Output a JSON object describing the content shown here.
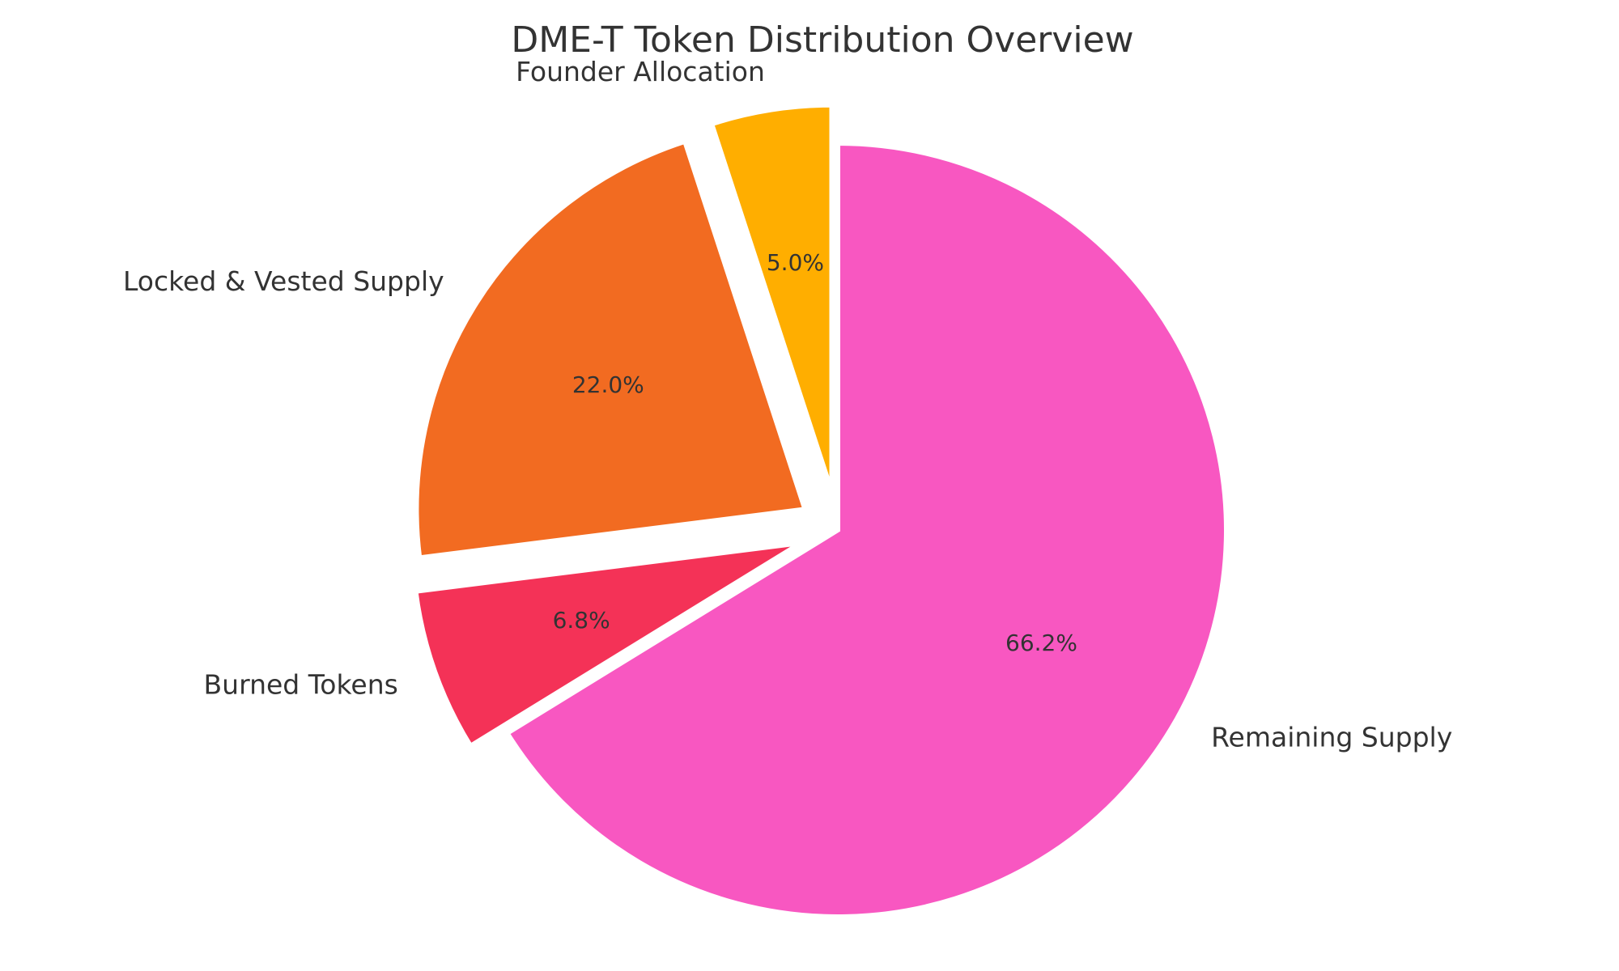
{
  "chart_data": {
    "type": "pie",
    "title": "DME-T Token Distribution Overview",
    "start_angle": 90,
    "direction": "clockwise",
    "slices": [
      {
        "name": "Remaining Supply",
        "label": "Remaining Supply",
        "pct_label": "66.2%",
        "value": 66.2,
        "color": "#F857C1",
        "exploded": false
      },
      {
        "name": "Burned Tokens",
        "label": "Burned Tokens",
        "pct_label": "6.8%",
        "value": 6.8,
        "color": "#F43257",
        "exploded": true
      },
      {
        "name": "Locked & Vested Supply",
        "label": "Locked & Vested Supply",
        "pct_label": "22.0%",
        "value": 22.0,
        "color": "#F26B21",
        "exploded": true
      },
      {
        "name": "Founder Allocation",
        "label": "Founder Allocation",
        "pct_label": "5.0%",
        "value": 5.0,
        "color": "#FFAE00",
        "exploded": true
      }
    ]
  }
}
